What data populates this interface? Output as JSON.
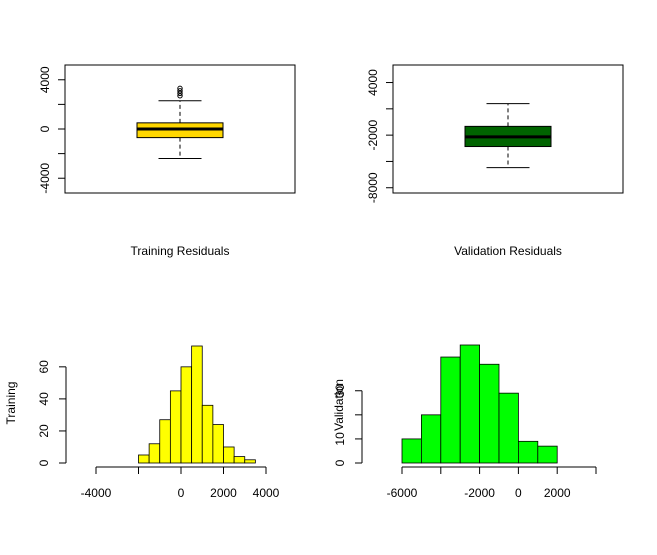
{
  "chart_data": [
    {
      "type": "boxplot",
      "title": "",
      "xlabel": "Training Residuals",
      "ylabel": "",
      "fill": "#FFD700",
      "ylim": [
        -5200,
        5200
      ],
      "yticks": [
        -4000,
        0,
        4000
      ],
      "ytick_labels": [
        "-4000",
        "0",
        "4000"
      ],
      "stats": {
        "lower_whisker": -2400,
        "q1": -700,
        "median": 0,
        "q3": 500,
        "upper_whisker": 2300
      },
      "outliers": [
        2700,
        2900,
        3100,
        3300
      ]
    },
    {
      "type": "boxplot",
      "title": "",
      "xlabel": "Validation Residuals",
      "ylabel": "",
      "fill": "#006400",
      "ylim": [
        -8600,
        6000
      ],
      "yticks": [
        -8000,
        -2000,
        4000
      ],
      "ytick_labels": [
        "-8000",
        "-2000",
        "4000"
      ],
      "stats": {
        "lower_whisker": -5700,
        "q1": -3300,
        "median": -2200,
        "q3": -1000,
        "upper_whisker": 1600
      },
      "outliers": []
    },
    {
      "type": "bar",
      "subtype": "histogram",
      "title": "",
      "xlabel": "",
      "ylabel": "Training",
      "fill": "#FFFF00",
      "bin_width": 500,
      "bin_edges": [
        -2000,
        -1500,
        -1000,
        -500,
        0,
        500,
        1000,
        1500,
        2000,
        2500,
        3000,
        3500
      ],
      "values": [
        5,
        12,
        27,
        45,
        60,
        73,
        36,
        24,
        10,
        4,
        2
      ],
      "xlim": [
        -4000,
        4000
      ],
      "xticks": [
        -4000,
        0,
        2000,
        4000
      ],
      "xtick_labels": [
        "-4000",
        "0",
        "2000",
        "4000"
      ],
      "ylim": [
        0,
        73
      ],
      "yticks": [
        0,
        20,
        40,
        60
      ],
      "ytick_labels": [
        "0",
        "20",
        "40",
        "60"
      ]
    },
    {
      "type": "bar",
      "subtype": "histogram",
      "title": "",
      "xlabel": "",
      "ylabel": "Validation",
      "fill": "#00FF00",
      "bin_width": 1000,
      "bin_edges": [
        -6000,
        -5000,
        -4000,
        -3000,
        -2000,
        -1000,
        0,
        1000,
        2000
      ],
      "values": [
        10,
        20,
        44,
        49,
        41,
        29,
        9,
        7
      ],
      "xlim": [
        -6000,
        4000
      ],
      "xticks": [
        -6000,
        -2000,
        0,
        2000
      ],
      "xtick_labels": [
        "-6000",
        "-2000",
        "0",
        "2000"
      ],
      "ylim": [
        0,
        49
      ],
      "yticks": [
        0,
        10,
        30
      ],
      "ytick_labels": [
        "0",
        "10",
        "30"
      ]
    }
  ]
}
